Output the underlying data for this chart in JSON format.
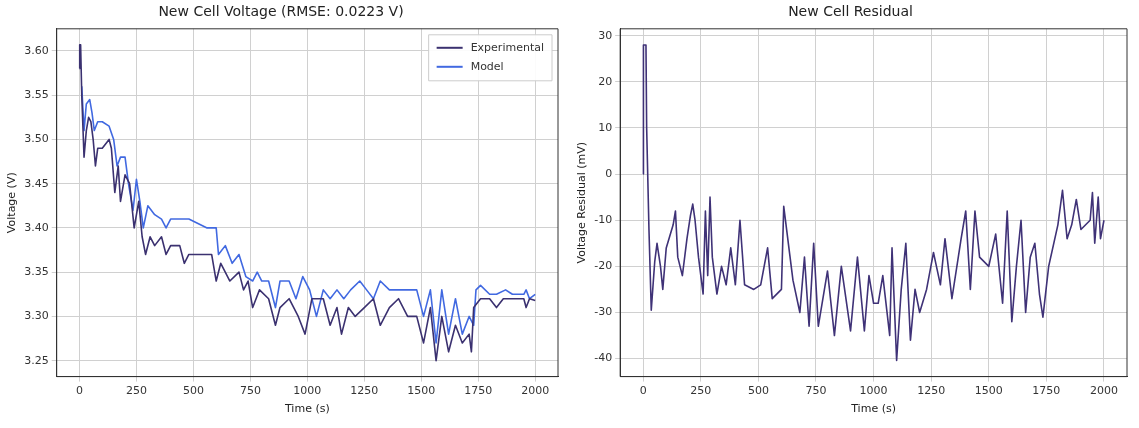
{
  "chart_data": [
    {
      "type": "line",
      "title": "New Cell Voltage (RMSE: 0.0223 V)",
      "xlabel": "Time (s)",
      "ylabel": "Voltage (V)",
      "xlim": [
        -100,
        2100
      ],
      "xticks": [
        0,
        250,
        500,
        750,
        1000,
        1250,
        1500,
        1750,
        2000
      ],
      "ylim": [
        3.232,
        3.625
      ],
      "yticks": [
        {
          "value": 3.25,
          "label": "3.25"
        },
        {
          "value": 3.3,
          "label": "3.30"
        },
        {
          "value": 3.35,
          "label": "3.35"
        },
        {
          "value": 3.4,
          "label": "3.40"
        },
        {
          "value": 3.45,
          "label": "3.45"
        },
        {
          "value": 3.5,
          "label": "3.50"
        },
        {
          "value": 3.55,
          "label": "3.55"
        },
        {
          "value": 3.6,
          "label": "3.60"
        }
      ],
      "grid": true,
      "legend": "top right",
      "series": [
        {
          "name": "Experimental",
          "color": "#3b3170",
          "x": [
            0,
            1,
            5,
            10,
            20,
            30,
            40,
            50,
            60,
            70,
            80,
            100,
            130,
            140,
            155,
            170,
            180,
            200,
            220,
            240,
            260,
            275,
            290,
            310,
            330,
            360,
            380,
            400,
            440,
            460,
            480,
            520,
            580,
            600,
            620,
            660,
            700,
            720,
            740,
            760,
            790,
            830,
            860,
            880,
            920,
            960,
            990,
            1020,
            1070,
            1100,
            1130,
            1150,
            1180,
            1210,
            1250,
            1290,
            1320,
            1360,
            1400,
            1440,
            1480,
            1510,
            1540,
            1565,
            1590,
            1620,
            1650,
            1680,
            1710,
            1720,
            1730,
            1760,
            1800,
            1830,
            1860,
            1900,
            1950,
            1960,
            1975,
            2000
          ],
          "values": [
            3.58,
            3.607,
            3.607,
            3.55,
            3.48,
            3.51,
            3.525,
            3.52,
            3.5,
            3.47,
            3.49,
            3.49,
            3.5,
            3.49,
            3.44,
            3.47,
            3.43,
            3.46,
            3.45,
            3.4,
            3.43,
            3.39,
            3.37,
            3.39,
            3.38,
            3.39,
            3.37,
            3.38,
            3.38,
            3.36,
            3.37,
            3.37,
            3.37,
            3.34,
            3.36,
            3.34,
            3.35,
            3.33,
            3.34,
            3.31,
            3.33,
            3.32,
            3.29,
            3.31,
            3.32,
            3.3,
            3.28,
            3.32,
            3.32,
            3.29,
            3.31,
            3.28,
            3.31,
            3.3,
            3.31,
            3.32,
            3.29,
            3.31,
            3.32,
            3.3,
            3.3,
            3.27,
            3.31,
            3.25,
            3.3,
            3.26,
            3.29,
            3.27,
            3.28,
            3.26,
            3.31,
            3.32,
            3.32,
            3.31,
            3.32,
            3.32,
            3.32,
            3.31,
            3.32,
            3.318
          ]
        },
        {
          "name": "Model",
          "color": "#4169e1",
          "x": [
            10,
            20,
            30,
            45,
            55,
            65,
            80,
            100,
            130,
            150,
            165,
            180,
            200,
            215,
            235,
            250,
            265,
            280,
            300,
            330,
            360,
            380,
            400,
            440,
            480,
            520,
            560,
            600,
            610,
            640,
            670,
            700,
            730,
            760,
            780,
            800,
            830,
            860,
            880,
            920,
            950,
            980,
            1010,
            1040,
            1070,
            1100,
            1130,
            1160,
            1190,
            1230,
            1260,
            1290,
            1320,
            1360,
            1400,
            1440,
            1480,
            1510,
            1540,
            1565,
            1590,
            1620,
            1650,
            1680,
            1710,
            1730,
            1740,
            1760,
            1800,
            1830,
            1870,
            1900,
            1950,
            1960,
            1975,
            2000
          ],
          "values": [
            3.56,
            3.51,
            3.54,
            3.545,
            3.53,
            3.51,
            3.52,
            3.52,
            3.515,
            3.5,
            3.47,
            3.48,
            3.48,
            3.45,
            3.42,
            3.455,
            3.43,
            3.4,
            3.425,
            3.415,
            3.41,
            3.4,
            3.41,
            3.41,
            3.41,
            3.405,
            3.4,
            3.4,
            3.37,
            3.38,
            3.36,
            3.37,
            3.345,
            3.34,
            3.35,
            3.34,
            3.34,
            3.31,
            3.34,
            3.34,
            3.32,
            3.345,
            3.33,
            3.3,
            3.33,
            3.32,
            3.33,
            3.32,
            3.33,
            3.34,
            3.33,
            3.32,
            3.34,
            3.33,
            3.33,
            3.33,
            3.33,
            3.3,
            3.33,
            3.27,
            3.33,
            3.28,
            3.32,
            3.28,
            3.3,
            3.29,
            3.33,
            3.335,
            3.325,
            3.325,
            3.33,
            3.325,
            3.325,
            3.33,
            3.32,
            3.325
          ]
        }
      ]
    },
    {
      "type": "line",
      "title": "New Cell Residual",
      "xlabel": "Time (s)",
      "ylabel": "Voltage Residual (mV)",
      "xlim": [
        -100,
        2100
      ],
      "xticks": [
        0,
        250,
        500,
        750,
        1000,
        1250,
        1500,
        1750,
        2000
      ],
      "ylim": [
        -43.9,
        31.5
      ],
      "yticks": [
        -40,
        -30,
        -20,
        -10,
        0,
        10,
        20,
        30
      ],
      "grid": true,
      "series": [
        {
          "color": "#3f3277",
          "x": [
            0,
            1,
            12,
            15,
            25,
            35,
            50,
            60,
            75,
            85,
            100,
            130,
            140,
            150,
            170,
            190,
            205,
            215,
            225,
            240,
            260,
            270,
            280,
            290,
            300,
            320,
            340,
            360,
            380,
            400,
            420,
            440,
            480,
            510,
            540,
            560,
            600,
            610,
            630,
            650,
            680,
            700,
            720,
            740,
            760,
            800,
            830,
            860,
            900,
            930,
            960,
            980,
            1000,
            1020,
            1040,
            1070,
            1080,
            1100,
            1120,
            1140,
            1160,
            1180,
            1200,
            1230,
            1260,
            1290,
            1310,
            1340,
            1380,
            1400,
            1420,
            1440,
            1460,
            1500,
            1530,
            1560,
            1580,
            1600,
            1620,
            1640,
            1660,
            1680,
            1700,
            1720,
            1735,
            1760,
            1800,
            1820,
            1840,
            1860,
            1880,
            1900,
            1940,
            1950,
            1960,
            1975,
            1985,
            2000
          ],
          "values": [
            0,
            28,
            28,
            10,
            -12,
            -29.5,
            -19,
            -15,
            -20,
            -25,
            -16,
            -11,
            -8,
            -18,
            -22,
            -14,
            -9,
            -6.5,
            -10,
            -18,
            -26,
            -8,
            -22,
            -5,
            -18,
            -26,
            -20,
            -24,
            -16,
            -24,
            -10,
            -24,
            -25,
            -24,
            -16,
            -27,
            -25,
            -7,
            -15,
            -23,
            -30,
            -18,
            -33,
            -15,
            -33,
            -21,
            -35,
            -20,
            -34,
            -18,
            -34,
            -22,
            -28,
            -28,
            -22,
            -35,
            -16,
            -40.4,
            -25,
            -15,
            -36,
            -25,
            -30,
            -25,
            -17,
            -24,
            -14,
            -27,
            -14,
            -8,
            -25,
            -8,
            -18,
            -20,
            -13,
            -28,
            -8,
            -32,
            -20,
            -10,
            -30,
            -18,
            -15,
            -26,
            -31,
            -20,
            -11,
            -3.5,
            -14,
            -11,
            -5.5,
            -12,
            -10,
            -4,
            -15,
            -5,
            -14,
            -10
          ]
        }
      ]
    }
  ]
}
